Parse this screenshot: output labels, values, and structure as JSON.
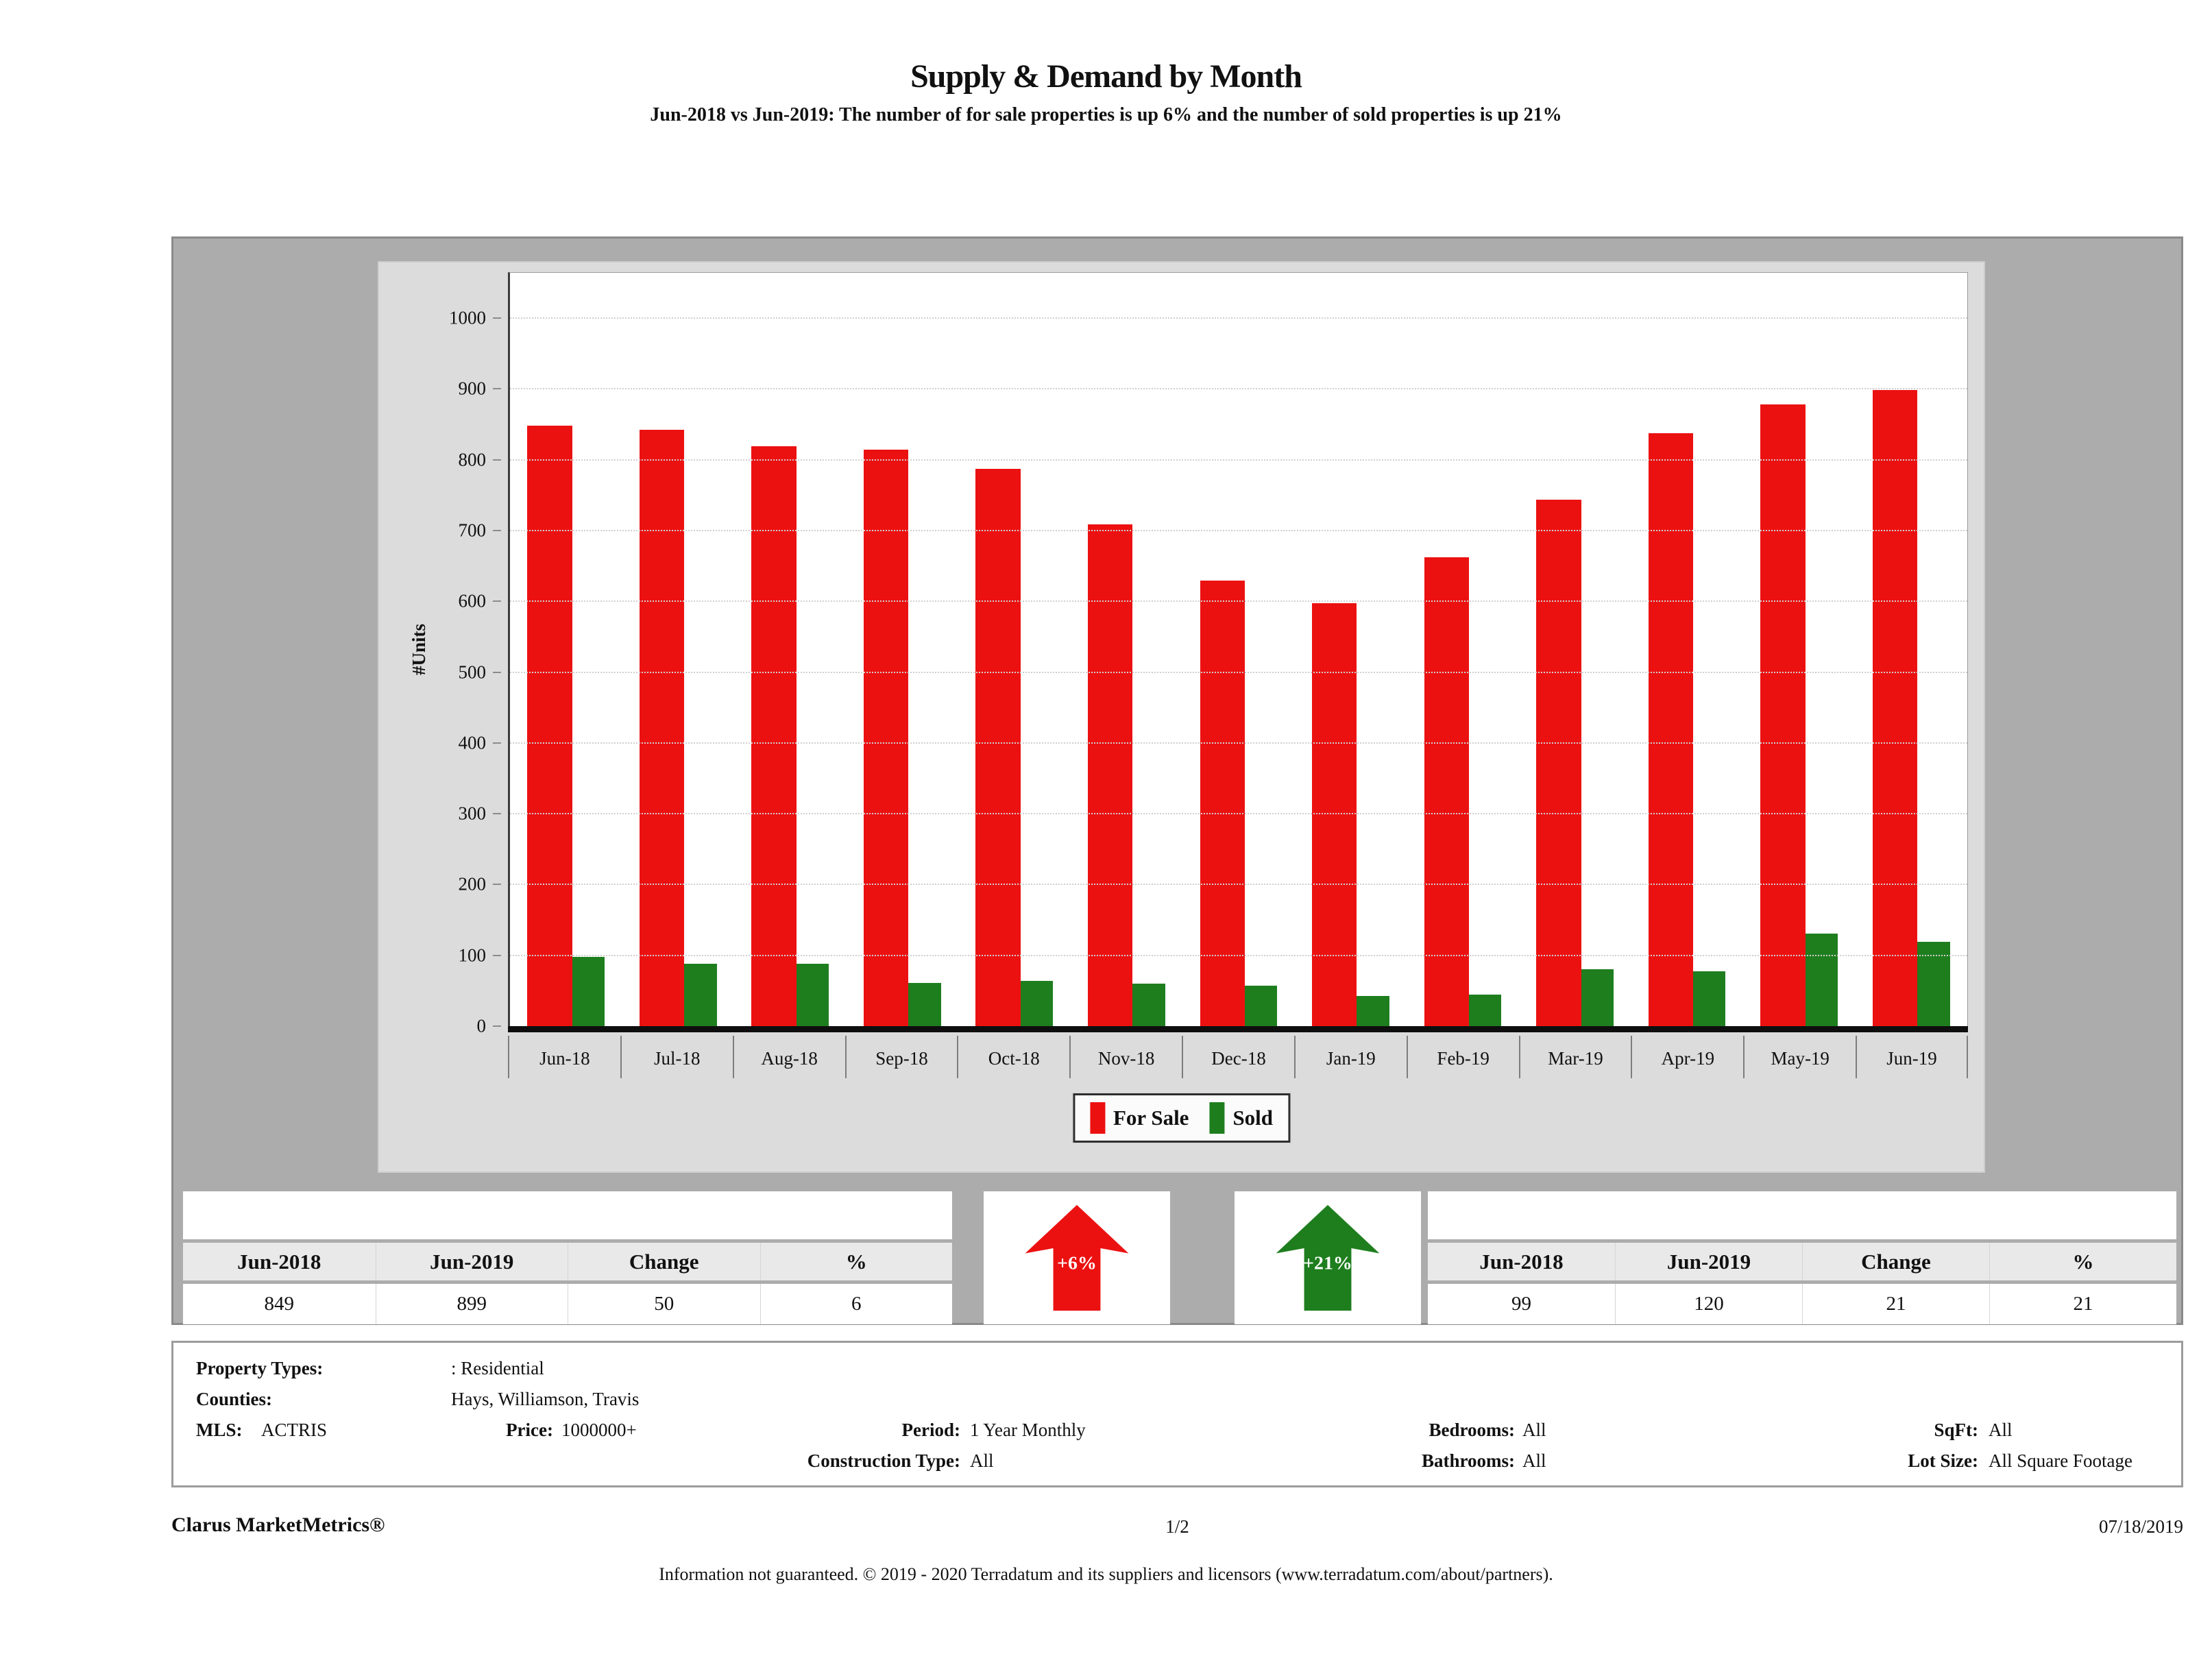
{
  "page": {
    "title": "Supply & Demand by Month",
    "subtitle": "Jun-2018 vs Jun-2019: The number of for sale properties is up 6% and the number of sold properties is up 21%"
  },
  "chart_data": {
    "type": "bar",
    "title": "Supply & Demand by Month",
    "xlabel": "",
    "ylabel": "#Units",
    "ylim": [
      0,
      1065
    ],
    "y_ticks": [
      0,
      100,
      200,
      300,
      400,
      500,
      600,
      700,
      800,
      900,
      1000
    ],
    "grid": true,
    "legend_position": "bottom",
    "categories": [
      "Jun-18",
      "Jul-18",
      "Aug-18",
      "Sep-18",
      "Oct-18",
      "Nov-18",
      "Dec-18",
      "Jan-19",
      "Feb-19",
      "Mar-19",
      "Apr-19",
      "May-19",
      "Jun-19"
    ],
    "series": [
      {
        "name": "For Sale",
        "color": "#ec1111",
        "values": [
          849,
          843,
          820,
          815,
          788,
          710,
          630,
          598,
          663,
          745,
          838,
          879,
          899
        ]
      },
      {
        "name": "Sold",
        "color": "#1e7e1e",
        "values": [
          99,
          89,
          89,
          62,
          65,
          61,
          58,
          44,
          46,
          81,
          78,
          132,
          120
        ]
      }
    ]
  },
  "supply_table": {
    "headers": [
      "Jun-2018",
      "Jun-2019",
      "Change",
      "%"
    ],
    "values": [
      "849",
      "899",
      "50",
      "6"
    ]
  },
  "sold_table": {
    "headers": [
      "Jun-2018",
      "Jun-2019",
      "Change",
      "%"
    ],
    "values": [
      "99",
      "120",
      "21",
      "21"
    ]
  },
  "badges": {
    "for_sale_change": "+6%",
    "sold_change": "+21%",
    "red": "#ec1111",
    "green": "#1e7e1e"
  },
  "filters": {
    "property_types_label": "Property Types:",
    "property_types_value": ": Residential",
    "counties_label": "Counties:",
    "counties_value": "Hays, Williamson, Travis",
    "mls_label": "MLS:",
    "mls_value": "ACTRIS",
    "price_label": "Price:",
    "price_value": "1000000+",
    "period_label": "Period:",
    "period_value": "1 Year Monthly",
    "construction_label": "Construction Type:",
    "construction_value": "All",
    "bedrooms_label": "Bedrooms:",
    "bedrooms_value": "All",
    "bathrooms_label": "Bathrooms:",
    "bathrooms_value": "All",
    "sqft_label": "SqFt:",
    "sqft_value": "All",
    "lot_label": "Lot Size:",
    "lot_value": "All Square Footage"
  },
  "footer": {
    "brand": "Clarus MarketMetrics®",
    "page_num": "1/2",
    "date": "07/18/2019",
    "disclaimer": "Information not guaranteed. © 2019 - 2020 Terradatum and its suppliers and licensors (www.terradatum.com/about/partners)."
  }
}
